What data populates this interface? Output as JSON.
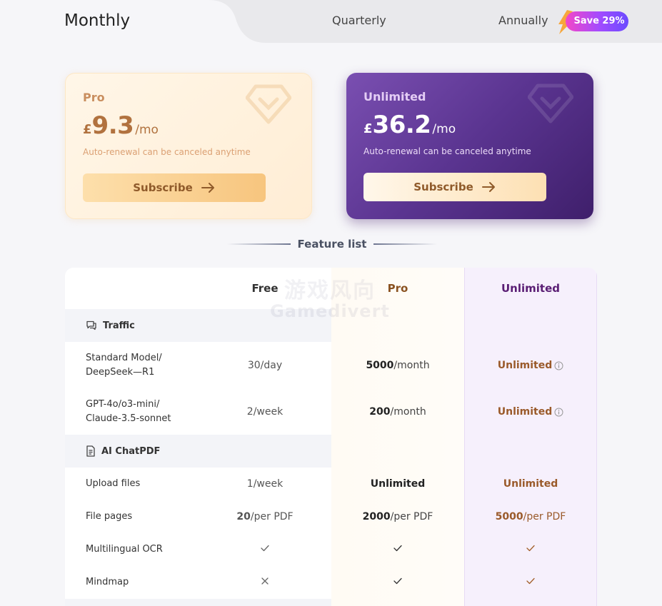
{
  "billing_tabs": {
    "monthly": "Monthly",
    "quarterly": "Quarterly",
    "annually": "Annually",
    "save_badge": "Save 29%"
  },
  "plans": {
    "pro": {
      "name": "Pro",
      "currency": "£",
      "price": "9.3",
      "period": "/mo",
      "renewal_note": "Auto-renewal can be canceled anytime",
      "subscribe_label": "Subscribe"
    },
    "unlimited": {
      "name": "Unlimited",
      "currency": "£",
      "price": "36.2",
      "period": "/mo",
      "renewal_note": "Auto-renewal can be canceled anytime",
      "subscribe_label": "Subscribe"
    }
  },
  "feature_list": {
    "heading": "Feature list",
    "columns": {
      "free": "Free",
      "pro": "Pro",
      "unlimited": "Unlimited"
    },
    "sections": {
      "traffic": {
        "title": "Traffic",
        "rows": [
          {
            "label_line1": "Standard Model/",
            "label_line2": "DeepSeek—R1",
            "free": "30/day",
            "pro_num": "5000",
            "pro_unit": "/month",
            "unlimited": "Unlimited"
          },
          {
            "label_line1": "GPT-4o/o3-mini/",
            "label_line2": "Claude-3.5-sonnet",
            "free": "2/week",
            "pro_num": "200",
            "pro_unit": "/month",
            "unlimited": "Unlimited"
          }
        ]
      },
      "chatpdf": {
        "title": "AI ChatPDF",
        "upload": {
          "label": "Upload files",
          "free": "1/week",
          "pro": "Unlimited",
          "unlimited": "Unlimited"
        },
        "pages": {
          "label": "File pages",
          "free_num": "20",
          "free_unit": "/per PDF",
          "pro_num": "2000",
          "pro_unit": "/per PDF",
          "unl_num": "5000",
          "unl_unit": "/per PDF"
        },
        "ocr": {
          "label": "Multilingual OCR",
          "free": "check",
          "pro": "check",
          "unlimited": "check"
        },
        "mindmap": {
          "label": "Mindmap",
          "free": "cross",
          "pro": "check",
          "unlimited": "check"
        }
      }
    }
  },
  "watermark": {
    "cn": "游戏风向",
    "en": "Gamedivert"
  },
  "colors": {
    "accent_pro": "#b1723f",
    "accent_unlimited": "#5a3490",
    "badge_gradient_start": "#f347c8",
    "badge_gradient_end": "#6b4bff"
  }
}
